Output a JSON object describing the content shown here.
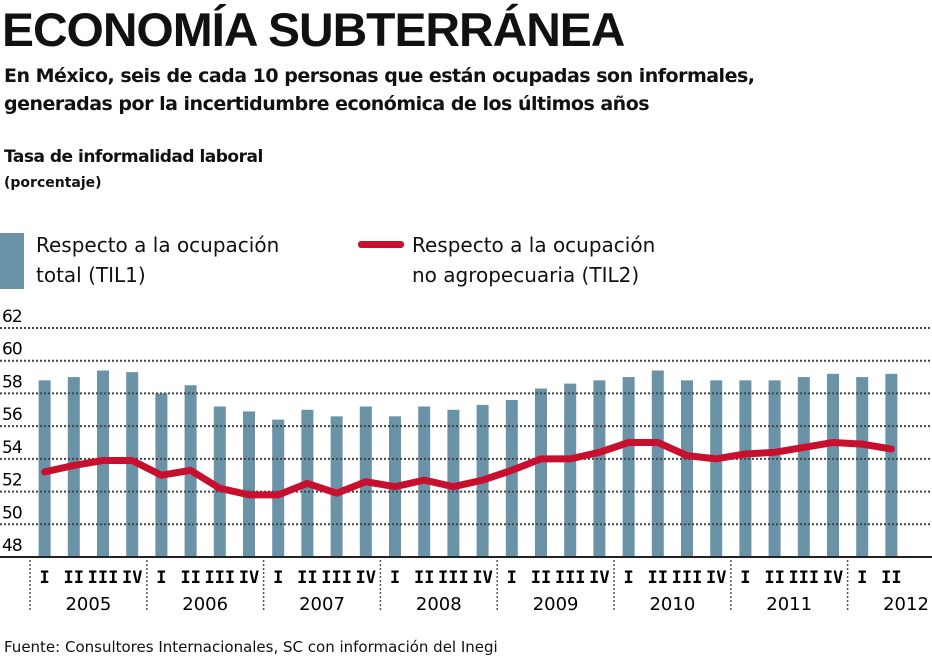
{
  "header": {
    "title": "ECONOMÍA SUBTERRÁNEA",
    "subtitle_line1": "En México, seis de cada 10 personas que están ocupadas son informales,",
    "subtitle_line2": "generadas por la incertidumbre económica de los últimos años"
  },
  "chart_data": {
    "type": "bar",
    "title": "Tasa de informalidad laboral",
    "unit": "(porcentaje)",
    "ylim": [
      48,
      62
    ],
    "yticks": [
      "62",
      "60",
      "58",
      "56",
      "54",
      "52",
      "50",
      "48"
    ],
    "grid": true,
    "legend_position": "top-left",
    "years": [
      "2005",
      "2006",
      "2007",
      "2008",
      "2009",
      "2010",
      "2011",
      "2012"
    ],
    "quarters": [
      "I",
      "II",
      "III",
      "IV"
    ],
    "categories": [
      "2005-I",
      "2005-II",
      "2005-III",
      "2005-IV",
      "2006-I",
      "2006-II",
      "2006-III",
      "2006-IV",
      "2007-I",
      "2007-II",
      "2007-III",
      "2007-IV",
      "2008-I",
      "2008-II",
      "2008-III",
      "2008-IV",
      "2009-I",
      "2009-II",
      "2009-III",
      "2009-IV",
      "2010-I",
      "2010-II",
      "2010-III",
      "2010-IV",
      "2011-I",
      "2011-II",
      "2011-III",
      "2011-IV",
      "2012-I",
      "2012-II"
    ],
    "series": [
      {
        "name": "Respecto a la ocupación total (TIL1)",
        "name_line1": "Respecto a la ocupación",
        "name_line2": "total (TIL1)",
        "type": "bar",
        "color": "#6b93a8",
        "values": [
          58.8,
          59.0,
          59.4,
          59.3,
          58.0,
          58.5,
          57.2,
          56.9,
          56.4,
          57.0,
          56.6,
          57.2,
          56.6,
          57.2,
          57.0,
          57.3,
          57.6,
          58.3,
          58.6,
          58.8,
          59.0,
          59.4,
          58.8,
          58.8,
          58.8,
          58.8,
          59.0,
          59.2,
          59.0,
          59.2
        ]
      },
      {
        "name": "Respecto a la ocupación no agropecuaria (TIL2)",
        "name_line1": "Respecto a la ocupación",
        "name_line2": "no agropecuaria (TIL2)",
        "type": "line",
        "color": "#c8102e",
        "values": [
          53.2,
          53.6,
          53.9,
          53.9,
          53.0,
          53.3,
          52.2,
          51.8,
          51.8,
          52.5,
          51.9,
          52.6,
          52.3,
          52.7,
          52.3,
          52.7,
          53.3,
          54.0,
          54.0,
          54.4,
          55.0,
          55.0,
          54.2,
          54.0,
          54.3,
          54.4,
          54.7,
          55.0,
          54.9,
          54.6
        ]
      }
    ]
  },
  "footer": {
    "source": "Fuente: Consultores Internacionales, SC con información del Inegi"
  }
}
